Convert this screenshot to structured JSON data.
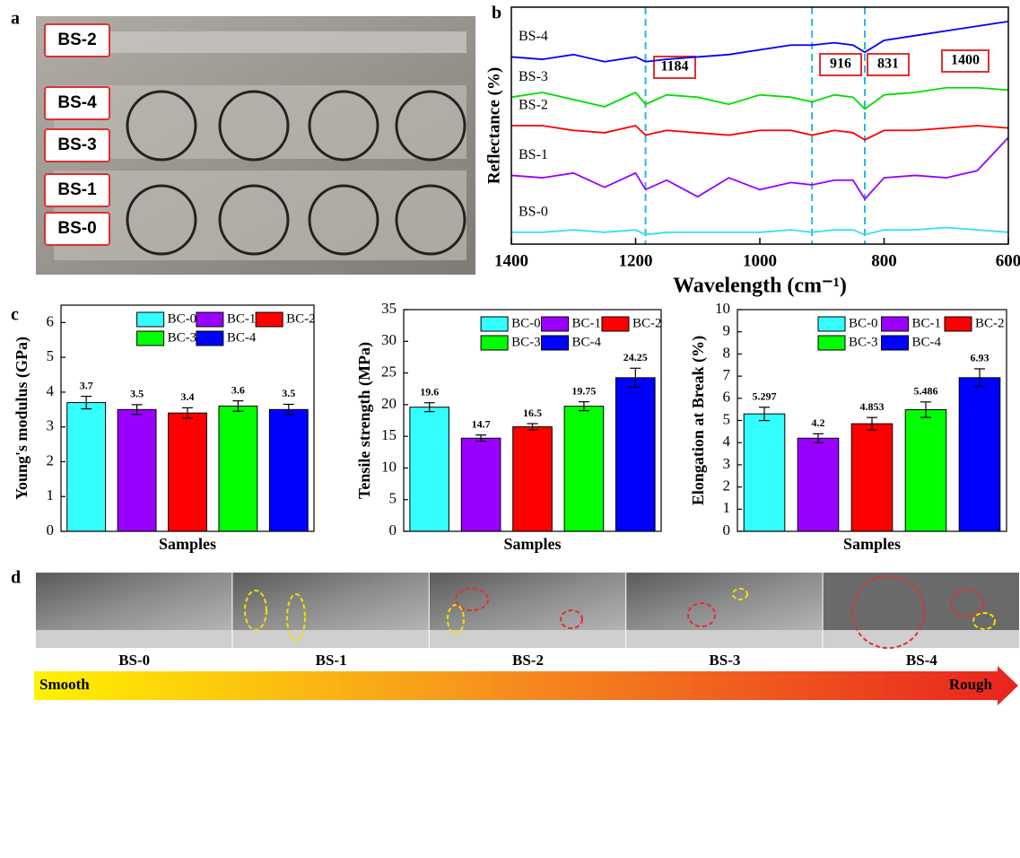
{
  "panel_labels": [
    "a",
    "b",
    "c",
    "d"
  ],
  "photo": {
    "labels": [
      "BS-2",
      "BS-4",
      "BS-3",
      "BS-1",
      "BS-0"
    ]
  },
  "chart_data": [
    {
      "type": "line",
      "y_label": "Reflectance (%)",
      "x_label": "Wavelength (cm⁻¹)",
      "xlim": [
        1400,
        600
      ],
      "xticks": [
        1400,
        1200,
        1000,
        800,
        600
      ],
      "ylim": [
        0,
        100
      ],
      "marked_peaks": [
        1184,
        916,
        831
      ],
      "extra_label": "1400",
      "x": [
        1400,
        1350,
        1300,
        1250,
        1200,
        1184,
        1150,
        1100,
        1050,
        1000,
        950,
        916,
        880,
        850,
        831,
        800,
        750,
        700,
        650,
        600
      ],
      "series": [
        {
          "name": "BS-4",
          "color": "#0000ff",
          "values": [
            79,
            78,
            80,
            77,
            79,
            77,
            78,
            79,
            80,
            82,
            84,
            84,
            85,
            84,
            81,
            86,
            88,
            90,
            92,
            94
          ]
        },
        {
          "name": "BS-3",
          "color": "#00dd00",
          "values": [
            62,
            64,
            61,
            58,
            64,
            59,
            63,
            62,
            59,
            63,
            62,
            60,
            63,
            62,
            57,
            63,
            64,
            66,
            66,
            65
          ]
        },
        {
          "name": "BS-2",
          "color": "#ff0000",
          "values": [
            50,
            50,
            48,
            47,
            50,
            46,
            48,
            47,
            46,
            48,
            48,
            46,
            48,
            47,
            44,
            48,
            48,
            49,
            50,
            49
          ]
        },
        {
          "name": "BS-1",
          "color": "#9900ff",
          "values": [
            29,
            28,
            30,
            24,
            30,
            23,
            27,
            20,
            28,
            23,
            26,
            25,
            27,
            27,
            19,
            28,
            29,
            28,
            31,
            45
          ]
        },
        {
          "name": "BS-0",
          "color": "#33e0f0",
          "values": [
            5,
            5,
            6,
            5,
            6,
            4,
            5,
            5,
            5,
            5,
            6,
            5,
            6,
            6,
            4,
            6,
            6,
            7,
            6,
            5
          ]
        }
      ]
    },
    {
      "type": "bar",
      "y_label": "Young's modulus (GPa)",
      "x_label": "Samples",
      "ylim": [
        0,
        6.5
      ],
      "yticks": [
        0,
        1,
        2,
        3,
        4,
        5,
        6
      ],
      "series": [
        {
          "name": "BC-0",
          "color": "#33ffff",
          "values": [
            3.7
          ],
          "errors": [
            0.18
          ]
        },
        {
          "name": "BC-1",
          "color": "#9900ff",
          "values": [
            3.5
          ],
          "errors": [
            0.14
          ]
        },
        {
          "name": "BC-2",
          "color": "#ff0000",
          "values": [
            3.4
          ],
          "errors": [
            0.15
          ]
        },
        {
          "name": "BC-3",
          "color": "#00ff00",
          "values": [
            3.6
          ],
          "errors": [
            0.15
          ]
        },
        {
          "name": "BC-4",
          "color": "#0000ff",
          "values": [
            3.5
          ],
          "errors": [
            0.15
          ]
        }
      ]
    },
    {
      "type": "bar",
      "y_label": "Tensile strength (MPa)",
      "x_label": "Samples",
      "ylim": [
        0,
        35
      ],
      "yticks": [
        0,
        5,
        10,
        15,
        20,
        25,
        30,
        35
      ],
      "series": [
        {
          "name": "BC-0",
          "color": "#33ffff",
          "values": [
            19.6
          ],
          "errors": [
            0.7
          ]
        },
        {
          "name": "BC-1",
          "color": "#9900ff",
          "values": [
            14.7
          ],
          "errors": [
            0.5
          ]
        },
        {
          "name": "BC-2",
          "color": "#ff0000",
          "values": [
            16.5
          ],
          "errors": [
            0.5
          ]
        },
        {
          "name": "BC-3",
          "color": "#00ff00",
          "values": [
            19.75
          ],
          "errors": [
            0.7
          ]
        },
        {
          "name": "BC-4",
          "color": "#0000ff",
          "values": [
            24.25
          ],
          "errors": [
            1.5
          ]
        }
      ]
    },
    {
      "type": "bar",
      "y_label": "Elongation at Break (%)",
      "x_label": "Samples",
      "ylim": [
        0,
        10
      ],
      "yticks": [
        0,
        1,
        2,
        3,
        4,
        5,
        6,
        7,
        8,
        9,
        10
      ],
      "series": [
        {
          "name": "BC-0",
          "color": "#33ffff",
          "values": [
            5.297
          ],
          "errors": [
            0.3
          ]
        },
        {
          "name": "BC-1",
          "color": "#9900ff",
          "values": [
            4.2
          ],
          "errors": [
            0.2
          ]
        },
        {
          "name": "BC-2",
          "color": "#ff0000",
          "values": [
            4.853
          ],
          "errors": [
            0.28
          ]
        },
        {
          "name": "BC-3",
          "color": "#00ff00",
          "values": [
            5.486
          ],
          "errors": [
            0.35
          ]
        },
        {
          "name": "BC-4",
          "color": "#0000ff",
          "values": [
            6.93
          ],
          "errors": [
            0.4
          ]
        }
      ]
    }
  ],
  "sem": {
    "labels": [
      "BS-0",
      "BS-1",
      "BS-2",
      "BS-3",
      "BS-4"
    ],
    "scale_start": "Smooth",
    "scale_end": "Rough"
  }
}
